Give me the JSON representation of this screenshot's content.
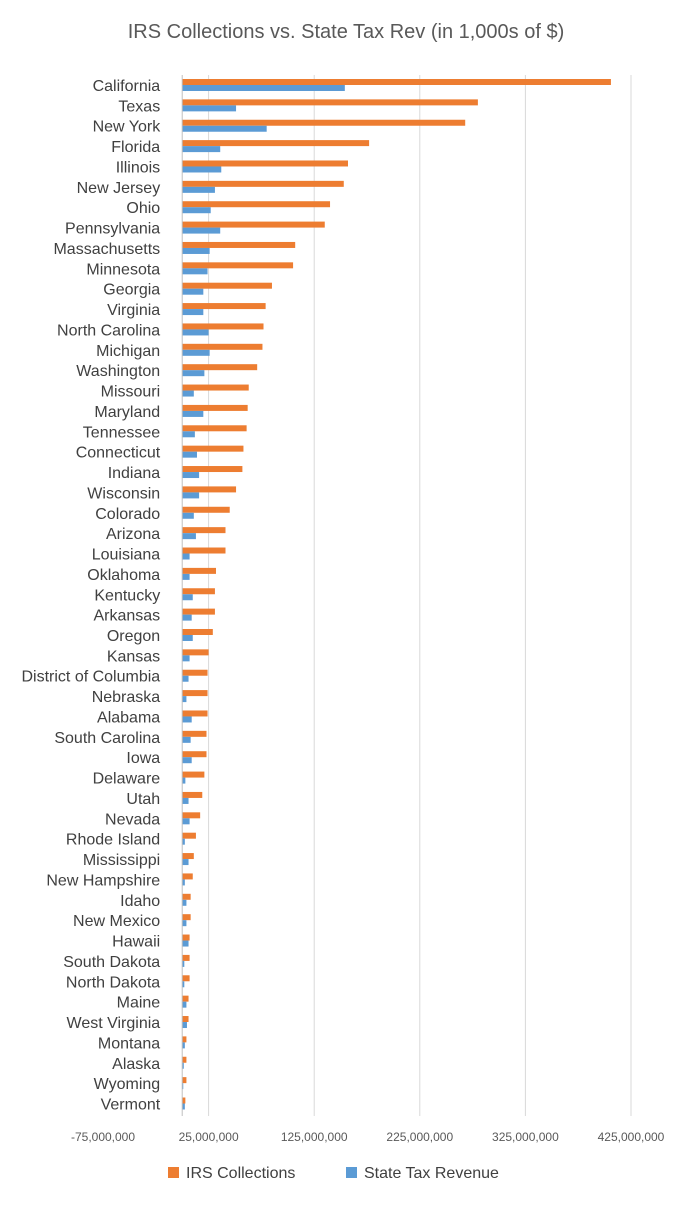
{
  "chart_data": {
    "type": "bar",
    "orientation": "horizontal",
    "title": "IRS Collections vs. State Tax Rev (in 1,000s of $)",
    "xlabel": "",
    "ylabel": "",
    "xlim": [
      -75000000,
      425000000
    ],
    "xticks": [
      -75000000,
      25000000,
      125000000,
      225000000,
      325000000,
      425000000
    ],
    "xtick_labels": [
      "-75,000,000",
      "25,000,000",
      "125,000,000",
      "225,000,000",
      "325,000,000",
      "425,000,000"
    ],
    "grid": "vertical",
    "legend_position": "bottom",
    "categories": [
      "California",
      "Texas",
      "New York",
      "Florida",
      "Illinois",
      "New Jersey",
      "Ohio",
      "Pennsylvania",
      "Massachusetts",
      "Minnesota",
      "Georgia",
      "Virginia",
      "North Carolina",
      "Michigan",
      "Washington",
      "Missouri",
      "Maryland",
      "Tennessee",
      "Connecticut",
      "Indiana",
      "Wisconsin",
      "Colorado",
      "Arizona",
      "Louisiana",
      "Oklahoma",
      "Kentucky",
      "Arkansas",
      "Oregon",
      "Kansas",
      "District of Columbia",
      "Nebraska",
      "Alabama",
      "South Carolina",
      "Iowa",
      "Delaware",
      "Utah",
      "Nevada",
      "Rhode Island",
      "Mississippi",
      "New Hampshire",
      "Idaho",
      "New Mexico",
      "Hawaii",
      "South Dakota",
      "North Dakota",
      "Maine",
      "West Virginia",
      "Montana",
      "Alaska",
      "Wyoming",
      "Vermont"
    ],
    "series": [
      {
        "name": "IRS Collections",
        "color": "#ED7D31",
        "values": [
          406000000,
          280000000,
          268000000,
          177000000,
          157000000,
          153000000,
          140000000,
          135000000,
          107000000,
          105000000,
          85000000,
          79000000,
          77000000,
          76000000,
          71000000,
          63000000,
          62000000,
          61000000,
          58000000,
          57000000,
          51000000,
          45000000,
          41000000,
          41000000,
          32000000,
          31000000,
          31000000,
          29000000,
          25000000,
          24000000,
          24000000,
          24000000,
          23000000,
          23000000,
          21000000,
          19000000,
          17000000,
          13000000,
          11000000,
          10000000,
          8000000,
          8000000,
          7000000,
          7000000,
          7000000,
          6000000,
          6000000,
          4000000,
          4000000,
          4000000,
          3000000
        ]
      },
      {
        "name": "State Tax Revenue",
        "color": "#5B9BD5",
        "values": [
          154000000,
          51000000,
          80000000,
          36000000,
          37000000,
          31000000,
          27000000,
          36000000,
          26000000,
          24000000,
          20000000,
          20000000,
          25000000,
          26000000,
          21000000,
          11000000,
          20000000,
          12000000,
          14000000,
          16000000,
          16000000,
          11000000,
          13000000,
          7000000,
          7000000,
          10000000,
          9000000,
          10000000,
          7000000,
          6000000,
          4000000,
          9000000,
          8000000,
          9000000,
          3000000,
          6000000,
          7000000,
          2500000,
          6000000,
          2500000,
          4000000,
          4000000,
          6000000,
          2000000,
          2000000,
          4000000,
          4500000,
          2500000,
          1500000,
          1000000,
          2500000
        ]
      }
    ]
  }
}
